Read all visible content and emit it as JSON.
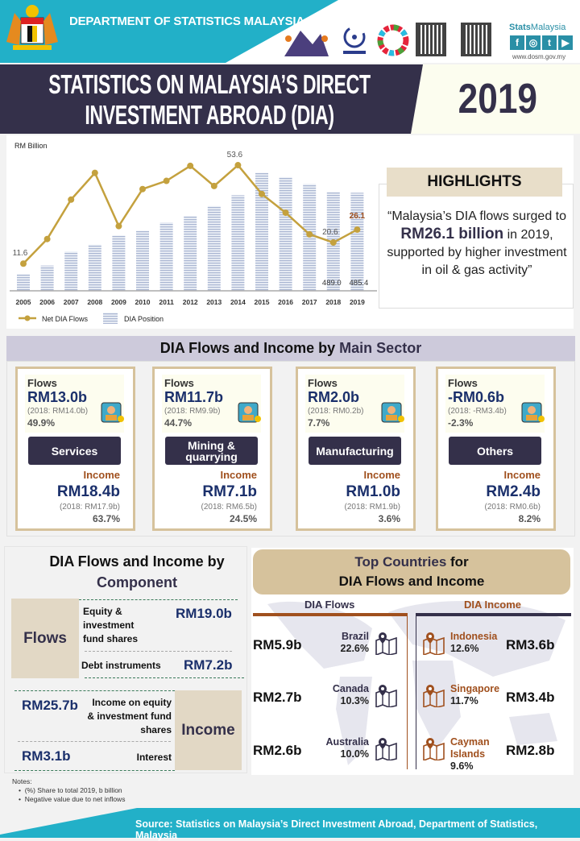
{
  "header": {
    "department": "DEPARTMENT OF STATISTICS MALAYSIA",
    "brand_bold": "Stats",
    "brand_rest": "Malaysia",
    "website": "www.dosm.gov.my",
    "logos": [
      "Census Malaysia 2020",
      "Hari Statistik Negara",
      "SDG wheel"
    ],
    "social_icons": [
      "facebook-icon",
      "instagram-icon",
      "twitter-icon",
      "youtube-icon"
    ]
  },
  "title": {
    "line1": "STATISTICS ON MALAYSIA’S DIRECT",
    "line2": "INVESTMENT ABROAD (DIA)",
    "year": "2019"
  },
  "highlights": {
    "title": "HIGHLIGHTS",
    "text_before": "“Malaysia’s DIA flows surged to ",
    "highlight": "RM26.1 billion",
    "text_after": " in 2019, supported by higher investment in oil & gas activity”"
  },
  "chart_data": {
    "type": "bar+line",
    "ylabel": "RM Billion",
    "categories": [
      "2005",
      "2006",
      "2007",
      "2008",
      "2009",
      "2010",
      "2011",
      "2012",
      "2013",
      "2014",
      "2015",
      "2016",
      "2017",
      "2018",
      "2019"
    ],
    "series": [
      {
        "name": "Net DIA Flows",
        "type": "line",
        "color": "#c4a13e",
        "values": [
          11.6,
          22.1,
          38.9,
          50.3,
          27.6,
          43.4,
          46.9,
          53.3,
          44.7,
          53.6,
          41.3,
          33.3,
          24.1,
          20.6,
          26.1
        ]
      },
      {
        "name": "DIA Position",
        "type": "bar",
        "color": "#b8c4dc",
        "values": [
          82,
          125,
          194,
          229,
          274,
          298,
          338,
          370,
          420,
          473,
          585,
          563,
          529,
          489.0,
          485.4
        ]
      }
    ],
    "data_labels": {
      "flows": [
        {
          "year": "2005",
          "text": "11.6"
        },
        {
          "year": "2014",
          "text": "53.6"
        },
        {
          "year": "2018",
          "text": "20.6"
        },
        {
          "year": "2019",
          "text": "26.1"
        }
      ],
      "position": [
        {
          "year": "2018",
          "text": "489.0"
        },
        {
          "year": "2019",
          "text": "485.4"
        }
      ]
    },
    "legend": [
      "Net DIA Flows",
      "DIA Position"
    ],
    "legend_position": "bottom-left",
    "grid": false
  },
  "sector": {
    "title_main": "DIA Flows and Income by ",
    "title_accent": "Main Sector",
    "flows_label": "Flows",
    "income_label": "Income",
    "cards": [
      {
        "name": "Services",
        "flows": "RM13.0b",
        "flows_prev": "(2018: RM14.0b)",
        "flows_share": "49.9%",
        "income": "RM18.4b",
        "income_prev": "(2018: RM17.9b)",
        "income_share": "63.7%"
      },
      {
        "name": "Mining & quarrying",
        "flows": "RM11.7b",
        "flows_prev": "(2018: RM9.9b)",
        "flows_share": "44.7%",
        "income": "RM7.1b",
        "income_prev": "(2018: RM6.5b)",
        "income_share": "24.5%"
      },
      {
        "name": "Manufacturing",
        "flows": "RM2.0b",
        "flows_prev": "(2018: RM0.2b)",
        "flows_share": "7.7%",
        "income": "RM1.0b",
        "income_prev": "(2018: RM1.9b)",
        "income_share": "3.6%"
      },
      {
        "name": "Others",
        "flows": "-RM0.6b",
        "flows_prev": "(2018: -RM3.4b)",
        "flows_share": "-2.3%",
        "income": "RM2.4b",
        "income_prev": "(2018: RM0.6b)",
        "income_share": "8.2%"
      }
    ]
  },
  "component": {
    "title_main": "DIA Flows and Income by",
    "title_accent": "Component",
    "flows_label": "Flows",
    "income_label": "Income",
    "flows_rows": [
      {
        "label": "Equity & investment fund shares",
        "value": "RM19.0b"
      },
      {
        "label": "Debt instruments",
        "value": "RM7.2b"
      }
    ],
    "income_rows": [
      {
        "label": "Income on equity & investment fund shares",
        "value": "RM25.7b"
      },
      {
        "label": "Interest",
        "value": "RM3.1b"
      }
    ]
  },
  "countries": {
    "title_accent": "Top Countries",
    "title_mid": " for",
    "title_line2": "DIA Flows and Income",
    "flows_header": "DIA Flows",
    "income_header": "DIA Income",
    "flows": [
      {
        "country": "Brazil",
        "share": "22.6%",
        "value": "RM5.9b"
      },
      {
        "country": "Canada",
        "share": "10.3%",
        "value": "RM2.7b"
      },
      {
        "country": "Australia",
        "share": "10.0%",
        "value": "RM2.6b"
      }
    ],
    "income": [
      {
        "country": "Indonesia",
        "share": "12.6%",
        "value": "RM3.6b"
      },
      {
        "country": "Singapore",
        "share": "11.7%",
        "value": "RM3.4b"
      },
      {
        "country": "Cayman Islands",
        "share": "9.6%",
        "value": "RM2.8b"
      }
    ]
  },
  "notes": {
    "title": "Notes:",
    "items": [
      "(%) Share to total 2019, b billion",
      "Negative value due to net inflows"
    ]
  },
  "footer": {
    "source": "Source: Statistics on Malaysia’s Direct Investment Abroad, Department of Statistics, Malaysia"
  },
  "colors": {
    "teal": "#22b0c8",
    "navy": "#34304a",
    "gold": "#c4a13e",
    "brown": "#a0501e",
    "tan": "#d6c29c",
    "value_blue": "#1a2f6b"
  }
}
